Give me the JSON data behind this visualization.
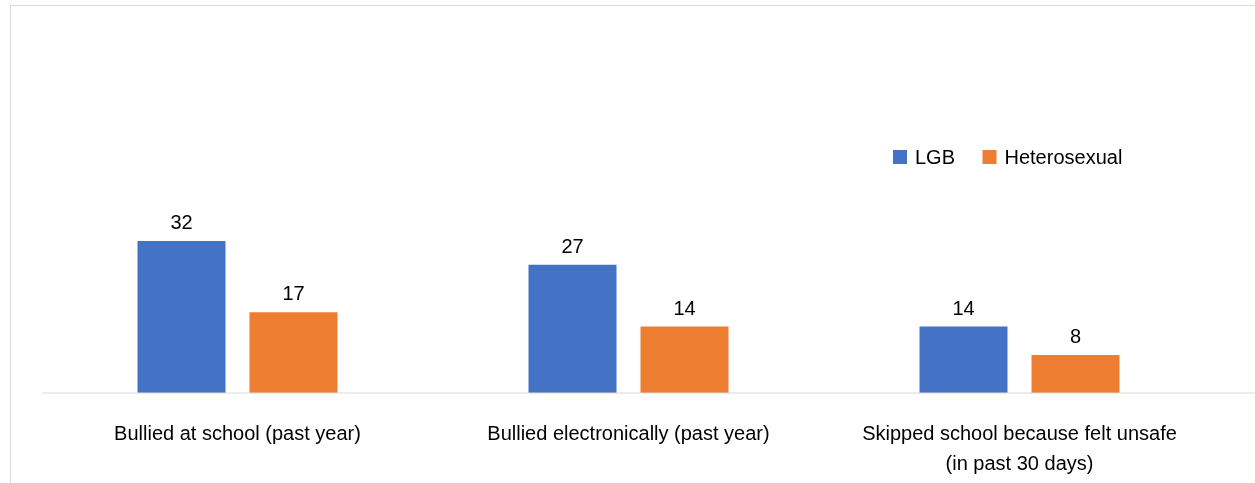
{
  "chart_data": {
    "type": "bar",
    "categories": [
      "Bullied at school (past year)",
      "Bullied electronically (past year)",
      "Skipped school because felt unsafe (in past 30 days)"
    ],
    "series": [
      {
        "name": "LGB",
        "color": "#4472c4",
        "values": [
          32,
          27,
          14
        ]
      },
      {
        "name": "Heterosexual",
        "color": "#ed7d31",
        "values": [
          17,
          14,
          8
        ]
      }
    ],
    "data_labels": true,
    "legend": "top right"
  }
}
